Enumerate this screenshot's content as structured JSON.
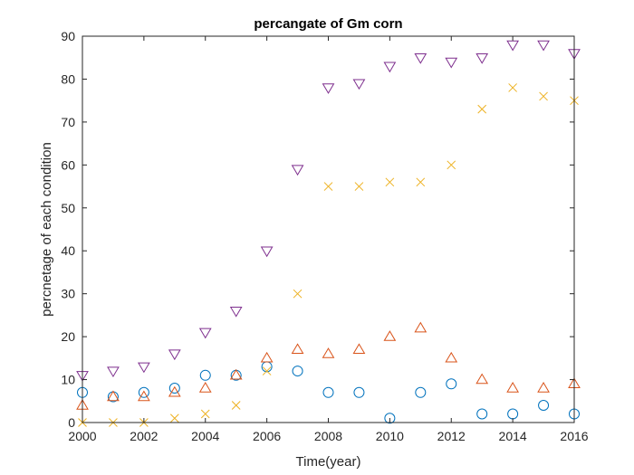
{
  "chart_data": {
    "type": "scatter",
    "title": "percangate of Gm corn",
    "xlabel": "Time(year)",
    "ylabel": "percnetage of each condition",
    "xlim": [
      2000,
      2016
    ],
    "ylim": [
      0,
      90
    ],
    "xticks": [
      2000,
      2002,
      2004,
      2006,
      2008,
      2010,
      2012,
      2014,
      2016
    ],
    "yticks": [
      0,
      10,
      20,
      30,
      40,
      50,
      60,
      70,
      80,
      90
    ],
    "xtick_labels": [
      "2000",
      "2002",
      "2004",
      "2006",
      "2008",
      "2010",
      "2012",
      "2014",
      "2016"
    ],
    "ytick_labels": [
      "0",
      "10",
      "20",
      "30",
      "40",
      "50",
      "60",
      "70",
      "80",
      "90"
    ],
    "grid": false,
    "x": [
      2000,
      2001,
      2002,
      2003,
      2004,
      2005,
      2006,
      2007,
      2008,
      2009,
      2010,
      2011,
      2012,
      2013,
      2014,
      2015,
      2016
    ],
    "series": [
      {
        "marker": "circle",
        "color": "#0072BD",
        "values": [
          7,
          6,
          7,
          8,
          11,
          11,
          13,
          12,
          7,
          7,
          1,
          7,
          9,
          2,
          2,
          4,
          2
        ]
      },
      {
        "marker": "triangle-up",
        "color": "#D95319",
        "values": [
          4,
          6,
          6,
          7,
          8,
          11,
          15,
          17,
          16,
          17,
          20,
          22,
          15,
          10,
          8,
          8,
          9
        ]
      },
      {
        "marker": "x",
        "color": "#EDB120",
        "values": [
          0,
          0,
          0,
          1,
          2,
          4,
          12,
          30,
          55,
          55,
          56,
          56,
          60,
          73,
          78,
          76,
          75
        ]
      },
      {
        "marker": "triangle-down",
        "color": "#7E2F8E",
        "values": [
          11,
          12,
          13,
          16,
          21,
          26,
          40,
          59,
          78,
          79,
          83,
          85,
          84,
          85,
          88,
          88,
          86
        ]
      }
    ]
  }
}
